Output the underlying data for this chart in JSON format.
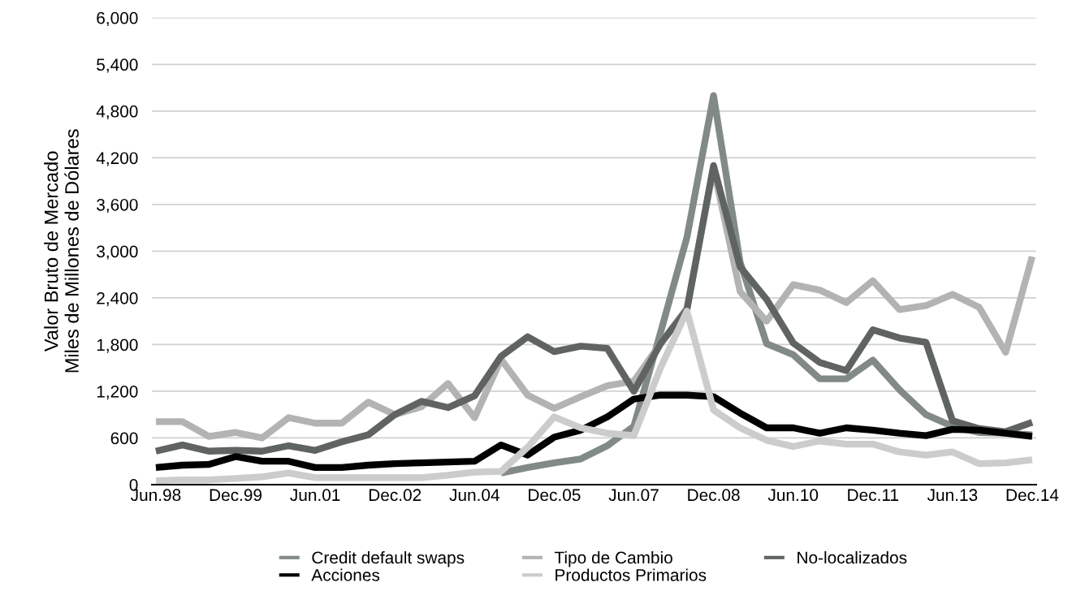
{
  "chart_data": {
    "type": "line",
    "ylabel": "Valor Bruto de Mercado\nMiles de Millones de Dólares",
    "categories": [
      "Jun.98",
      null,
      null,
      "Dec.99",
      null,
      null,
      "Jun.01",
      null,
      null,
      "Dec.02",
      null,
      null,
      "Jun.04",
      null,
      null,
      "Dec.05",
      null,
      null,
      "Jun.07",
      null,
      null,
      "Dec.08",
      null,
      null,
      "Jun.10",
      null,
      null,
      "Dec.11",
      null,
      null,
      "Jun.13",
      null,
      null,
      "Dec.14"
    ],
    "series": [
      {
        "name": "Credit default swaps",
        "color": "#828a87",
        "values": [
          null,
          null,
          null,
          null,
          null,
          null,
          null,
          null,
          null,
          null,
          null,
          null,
          null,
          150,
          220,
          280,
          330,
          500,
          750,
          1950,
          3180,
          5000,
          2860,
          1810,
          1670,
          1360,
          1360,
          1600,
          1220,
          900,
          750,
          670,
          660,
          640
        ]
      },
      {
        "name": "Tipo de Cambio",
        "color": "#b3b3b3",
        "values": [
          810,
          810,
          620,
          670,
          600,
          860,
          790,
          790,
          1060,
          900,
          1000,
          1300,
          860,
          1610,
          1150,
          980,
          1130,
          1270,
          1330,
          1810,
          2270,
          4070,
          2480,
          2100,
          2570,
          2500,
          2340,
          2620,
          2250,
          2300,
          2445,
          2280,
          1700,
          2930
        ]
      },
      {
        "name": "No-localizados",
        "color": "#5f6361",
        "values": [
          430,
          510,
          430,
          440,
          430,
          500,
          440,
          550,
          640,
          900,
          1070,
          990,
          1140,
          1650,
          1900,
          1710,
          1780,
          1750,
          1200,
          1810,
          2250,
          4100,
          2800,
          2380,
          1820,
          1570,
          1465,
          1990,
          1885,
          1830,
          820,
          720,
          680,
          800
        ]
      },
      {
        "name": "Acciones",
        "color": "#000000",
        "values": [
          220,
          250,
          260,
          360,
          300,
          300,
          220,
          220,
          250,
          270,
          280,
          290,
          300,
          510,
          380,
          610,
          700,
          870,
          1100,
          1150,
          1150,
          1130,
          920,
          730,
          730,
          660,
          730,
          700,
          660,
          630,
          710,
          700,
          660,
          620
        ]
      },
      {
        "name": "Productos Primarios",
        "color": "#cccccc",
        "values": [
          50,
          60,
          60,
          80,
          100,
          150,
          90,
          90,
          90,
          90,
          90,
          120,
          160,
          170,
          480,
          870,
          730,
          660,
          630,
          1500,
          2230,
          960,
          730,
          570,
          490,
          560,
          520,
          520,
          420,
          380,
          420,
          270,
          280,
          320
        ]
      }
    ],
    "ylim": [
      0,
      6000
    ],
    "yticks": [
      0,
      {
        "value": 600,
        "label": "600"
      },
      {
        "value": 1200,
        "label": "1,200"
      },
      {
        "value": 1800,
        "label": "1,800"
      },
      {
        "value": 2400,
        "label": "2,400"
      },
      {
        "value": 3000,
        "label": "3,000"
      },
      {
        "value": 3600,
        "label": "3,600"
      },
      {
        "value": 4200,
        "label": "4,200"
      },
      {
        "value": 4800,
        "label": "4,800"
      },
      {
        "value": 5400,
        "label": "5,400"
      },
      {
        "value": 6000,
        "label": "6,000"
      }
    ],
    "grid": "y",
    "legend": "bottom",
    "line_style": "solid"
  }
}
